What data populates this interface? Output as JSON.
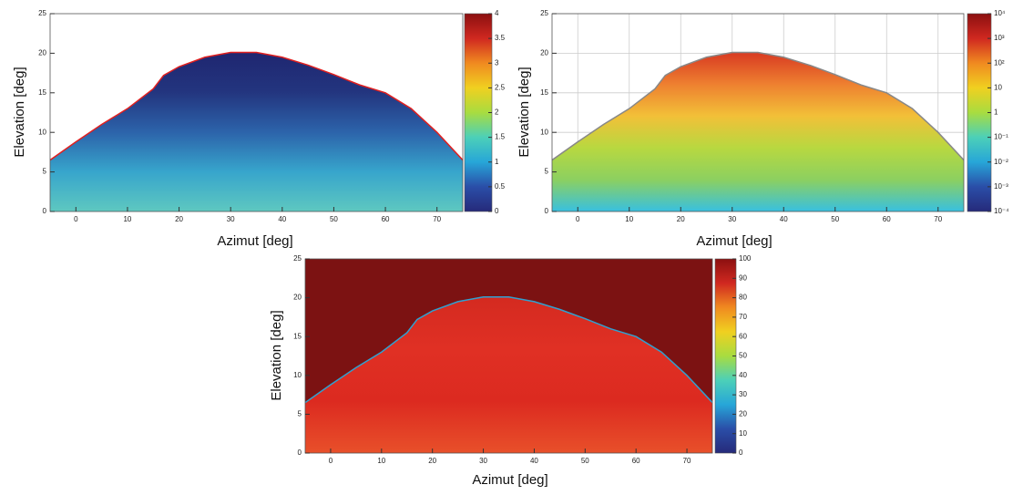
{
  "chart_data": [
    {
      "type": "heatmap",
      "x_label": "Azimut [deg]",
      "y_label": "Elevation [deg]",
      "xlim": [
        -5,
        75
      ],
      "xticks": [
        0,
        10,
        20,
        30,
        40,
        50,
        60,
        70
      ],
      "ylim": [
        0,
        25
      ],
      "yticks": [
        0,
        5,
        10,
        15,
        20,
        25
      ],
      "zlim": [
        0,
        4
      ],
      "zticks": [
        0,
        0.5,
        1,
        1.5,
        2,
        2.5,
        3,
        3.5,
        4
      ],
      "zlog": false,
      "grid": false,
      "colormap": [
        "#262a7a",
        "#2a4ea8",
        "#27a6d8",
        "#4cd0b8",
        "#a8dc40",
        "#f0d020",
        "#f08a20",
        "#d02820",
        "#8c1010"
      ],
      "background": "#ffffff",
      "fill_colors": [
        "#1f2670",
        "#23357f",
        "#2c63aa",
        "#37a5cc",
        "#5ec8c0"
      ],
      "edge_color": "#e02020",
      "boundary": {
        "x": [
          -5,
          0,
          5,
          10,
          15,
          17,
          20,
          25,
          30,
          35,
          40,
          45,
          50,
          55,
          60,
          65,
          70,
          75
        ],
        "y": [
          6.5,
          8.8,
          11,
          13,
          15.5,
          17.2,
          18.3,
          19.5,
          20.1,
          20.1,
          19.5,
          18.5,
          17.3,
          16,
          15,
          13,
          10,
          6.5
        ]
      }
    },
    {
      "type": "heatmap",
      "x_label": "Azimut [deg]",
      "y_label": "Elevation [deg]",
      "xlim": [
        -5,
        75
      ],
      "xticks": [
        0,
        10,
        20,
        30,
        40,
        50,
        60,
        70
      ],
      "ylim": [
        0,
        25
      ],
      "yticks": [
        0,
        5,
        10,
        15,
        20,
        25
      ],
      "zlim": [
        0.0001,
        10000
      ],
      "zticks": [
        {
          "value": 0.0001,
          "label": "10⁻⁴"
        },
        {
          "value": 0.001,
          "label": "10⁻³"
        },
        {
          "value": 0.01,
          "label": "10⁻²"
        },
        {
          "value": 0.1,
          "label": "10⁻¹"
        },
        1,
        10,
        {
          "value": 100,
          "label": "10²"
        },
        {
          "value": 1000,
          "label": "10³"
        },
        {
          "value": 10000,
          "label": "10⁴"
        }
      ],
      "zlog": true,
      "grid": true,
      "colormap": [
        "#262a7a",
        "#2a4ea8",
        "#27a6d8",
        "#4cd0b8",
        "#a8dc40",
        "#f0d020",
        "#f08a20",
        "#d02820",
        "#8c1010"
      ],
      "background": "#ffffff",
      "fill_colors": [
        "#d83a22",
        "#ee8030",
        "#f2c038",
        "#b8d840",
        "#8cd060",
        "#38c0e0"
      ],
      "edge_color": "#888888",
      "boundary": {
        "x": [
          -5,
          0,
          5,
          10,
          15,
          17,
          20,
          25,
          30,
          35,
          40,
          45,
          50,
          55,
          60,
          65,
          70,
          75
        ],
        "y": [
          6.5,
          8.8,
          11,
          13,
          15.5,
          17.2,
          18.3,
          19.5,
          20.1,
          20.1,
          19.5,
          18.5,
          17.3,
          16,
          15,
          13,
          10,
          6.5
        ]
      }
    },
    {
      "type": "heatmap",
      "x_label": "Azimut [deg]",
      "y_label": "Elevation [deg]",
      "xlim": [
        -5,
        75
      ],
      "xticks": [
        0,
        10,
        20,
        30,
        40,
        50,
        60,
        70
      ],
      "ylim": [
        0,
        25
      ],
      "yticks": [
        0,
        5,
        10,
        15,
        20,
        25
      ],
      "zlim": [
        0,
        100
      ],
      "zticks": [
        0,
        10,
        20,
        30,
        40,
        50,
        60,
        70,
        80,
        90,
        100
      ],
      "zlog": false,
      "grid": false,
      "colormap": [
        "#262a7a",
        "#2a4ea8",
        "#27a6d8",
        "#4cd0b8",
        "#a8dc40",
        "#f0d020",
        "#f08a20",
        "#d02820",
        "#8c1010"
      ],
      "background": "#7c1212",
      "fill_colors": [
        "#d42a20",
        "#e03024",
        "#dc2a20",
        "#e8502a"
      ],
      "edge_color": "#30a0d0",
      "boundary": {
        "x": [
          -5,
          0,
          5,
          10,
          15,
          17,
          20,
          25,
          30,
          35,
          40,
          45,
          50,
          55,
          60,
          65,
          70,
          75
        ],
        "y": [
          6.5,
          8.8,
          11,
          13,
          15.5,
          17.2,
          18.3,
          19.5,
          20.1,
          20.1,
          19.5,
          18.5,
          17.3,
          16,
          15,
          13,
          10,
          6.5
        ]
      }
    }
  ]
}
